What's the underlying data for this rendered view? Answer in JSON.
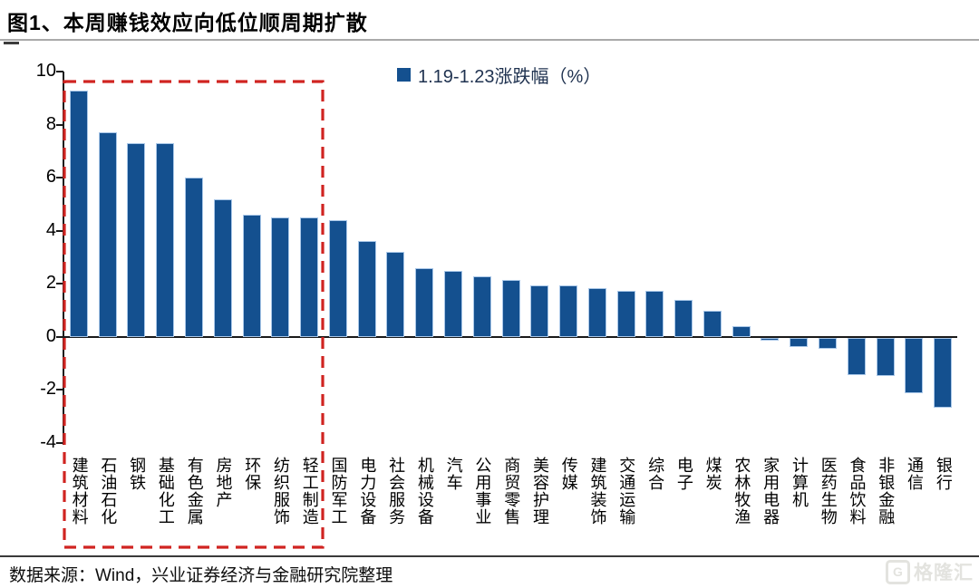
{
  "header": {
    "title": "图1、本周赚钱效应向低位顺周期扩散"
  },
  "legend": {
    "label": "1.19-1.23涨跌幅（%）",
    "swatch_color": "#14508F"
  },
  "footer": {
    "source": "数据来源：Wind，兴业证券经济与金融研究院整理"
  },
  "watermark": {
    "logo_letter": "G",
    "text": "格隆汇"
  },
  "colors": {
    "bar": "#14508F",
    "bar_edge": "#a9c7e8",
    "highlight_box": "#d02421",
    "axis": "#1a1a1a",
    "title_rule": "#a9a9a9"
  },
  "chart_data": {
    "type": "bar",
    "title": "图1、本周赚钱效应向低位顺周期扩散",
    "legend_entries": [
      "1.19-1.23涨跌幅（%）"
    ],
    "legend_position": "top-center",
    "grid": false,
    "xlabel": "",
    "ylabel": "",
    "ylim": [
      -4,
      10
    ],
    "yticks": [
      10,
      8,
      6,
      4,
      2,
      0,
      -2,
      -4
    ],
    "categories": [
      "建筑材料",
      "石油石化",
      "钢铁",
      "基础化工",
      "有色金属",
      "房地产",
      "环保",
      "纺织服饰",
      "轻工制造",
      "国防军工",
      "电力设备",
      "社会服务",
      "机械设备",
      "汽车",
      "公用事业",
      "商贸零售",
      "美容护理",
      "传媒",
      "建筑装饰",
      "交通运输",
      "综合",
      "电子",
      "煤炭",
      "农林牧渔",
      "家用电器",
      "计算机",
      "医药生物",
      "食品饮料",
      "非银金融",
      "通信",
      "银行"
    ],
    "values": [
      9.3,
      7.7,
      7.3,
      7.3,
      6.0,
      5.2,
      4.6,
      4.5,
      4.5,
      4.4,
      3.6,
      3.2,
      2.6,
      2.5,
      2.3,
      2.15,
      1.95,
      1.95,
      1.85,
      1.75,
      1.75,
      1.4,
      1.0,
      0.4,
      -0.1,
      -0.35,
      -0.4,
      -1.4,
      -1.45,
      -2.1,
      -2.65
    ],
    "highlight_box": {
      "from_category": "建筑材料",
      "to_category": "轻工制造",
      "style": "red-dashed-rectangle"
    }
  }
}
